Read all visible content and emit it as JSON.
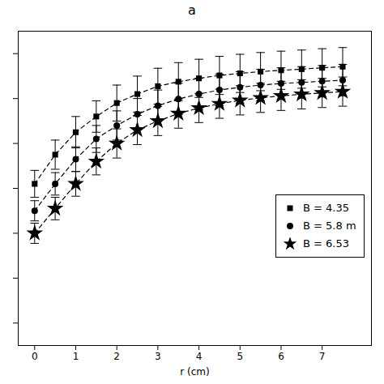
{
  "chart_data": {
    "type": "line",
    "title": "a",
    "xlabel": "r (cm)",
    "x": [
      0.0,
      0.5,
      1.0,
      1.5,
      2.0,
      2.5,
      3.0,
      3.5,
      4.0,
      4.5,
      5.0,
      5.5,
      6.0,
      6.5,
      7.0,
      7.5
    ],
    "series": [
      {
        "name": "B = 4.35",
        "marker": "square",
        "line_style": "dashed",
        "values": [
          0.42,
          0.55,
          0.65,
          0.72,
          0.78,
          0.82,
          0.855,
          0.875,
          0.89,
          0.903,
          0.912,
          0.92,
          0.926,
          0.931,
          0.937,
          0.942
        ],
        "yerr": [
          0.06,
          0.065,
          0.07,
          0.07,
          0.08,
          0.08,
          0.08,
          0.085,
          0.085,
          0.085,
          0.085,
          0.085,
          0.085,
          0.085,
          0.085,
          0.085
        ]
      },
      {
        "name": "B = 5.8 m",
        "marker": "circle",
        "line_style": "dashed",
        "values": [
          0.3,
          0.42,
          0.53,
          0.62,
          0.68,
          0.73,
          0.768,
          0.798,
          0.82,
          0.838,
          0.85,
          0.86,
          0.867,
          0.872,
          0.877,
          0.882
        ],
        "yerr": [
          0.045,
          0.05,
          0.055,
          0.06,
          0.065,
          0.07,
          0.07,
          0.07,
          0.07,
          0.07,
          0.07,
          0.07,
          0.07,
          0.07,
          0.07,
          0.07
        ]
      },
      {
        "name": "B = 6.53",
        "marker": "star",
        "line_style": "dashed",
        "values": [
          0.2,
          0.31,
          0.42,
          0.52,
          0.6,
          0.66,
          0.7,
          0.733,
          0.758,
          0.777,
          0.792,
          0.803,
          0.812,
          0.819,
          0.825,
          0.831
        ],
        "yerr": [
          0.045,
          0.05,
          0.055,
          0.06,
          0.065,
          0.065,
          0.065,
          0.065,
          0.065,
          0.065,
          0.065,
          0.065,
          0.065,
          0.065,
          0.065,
          0.065
        ]
      }
    ],
    "color": "black",
    "xlim": [
      -0.4,
      8.2
    ],
    "xticks": [
      0,
      1,
      2,
      3,
      4,
      5,
      6,
      7
    ],
    "ylim": [
      -0.3,
      1.1
    ],
    "yticks": [
      -0.2,
      0,
      0.2,
      0.4,
      0.6,
      0.8,
      1.0
    ],
    "tick_labels": "x",
    "grid": false,
    "legend": "right"
  }
}
